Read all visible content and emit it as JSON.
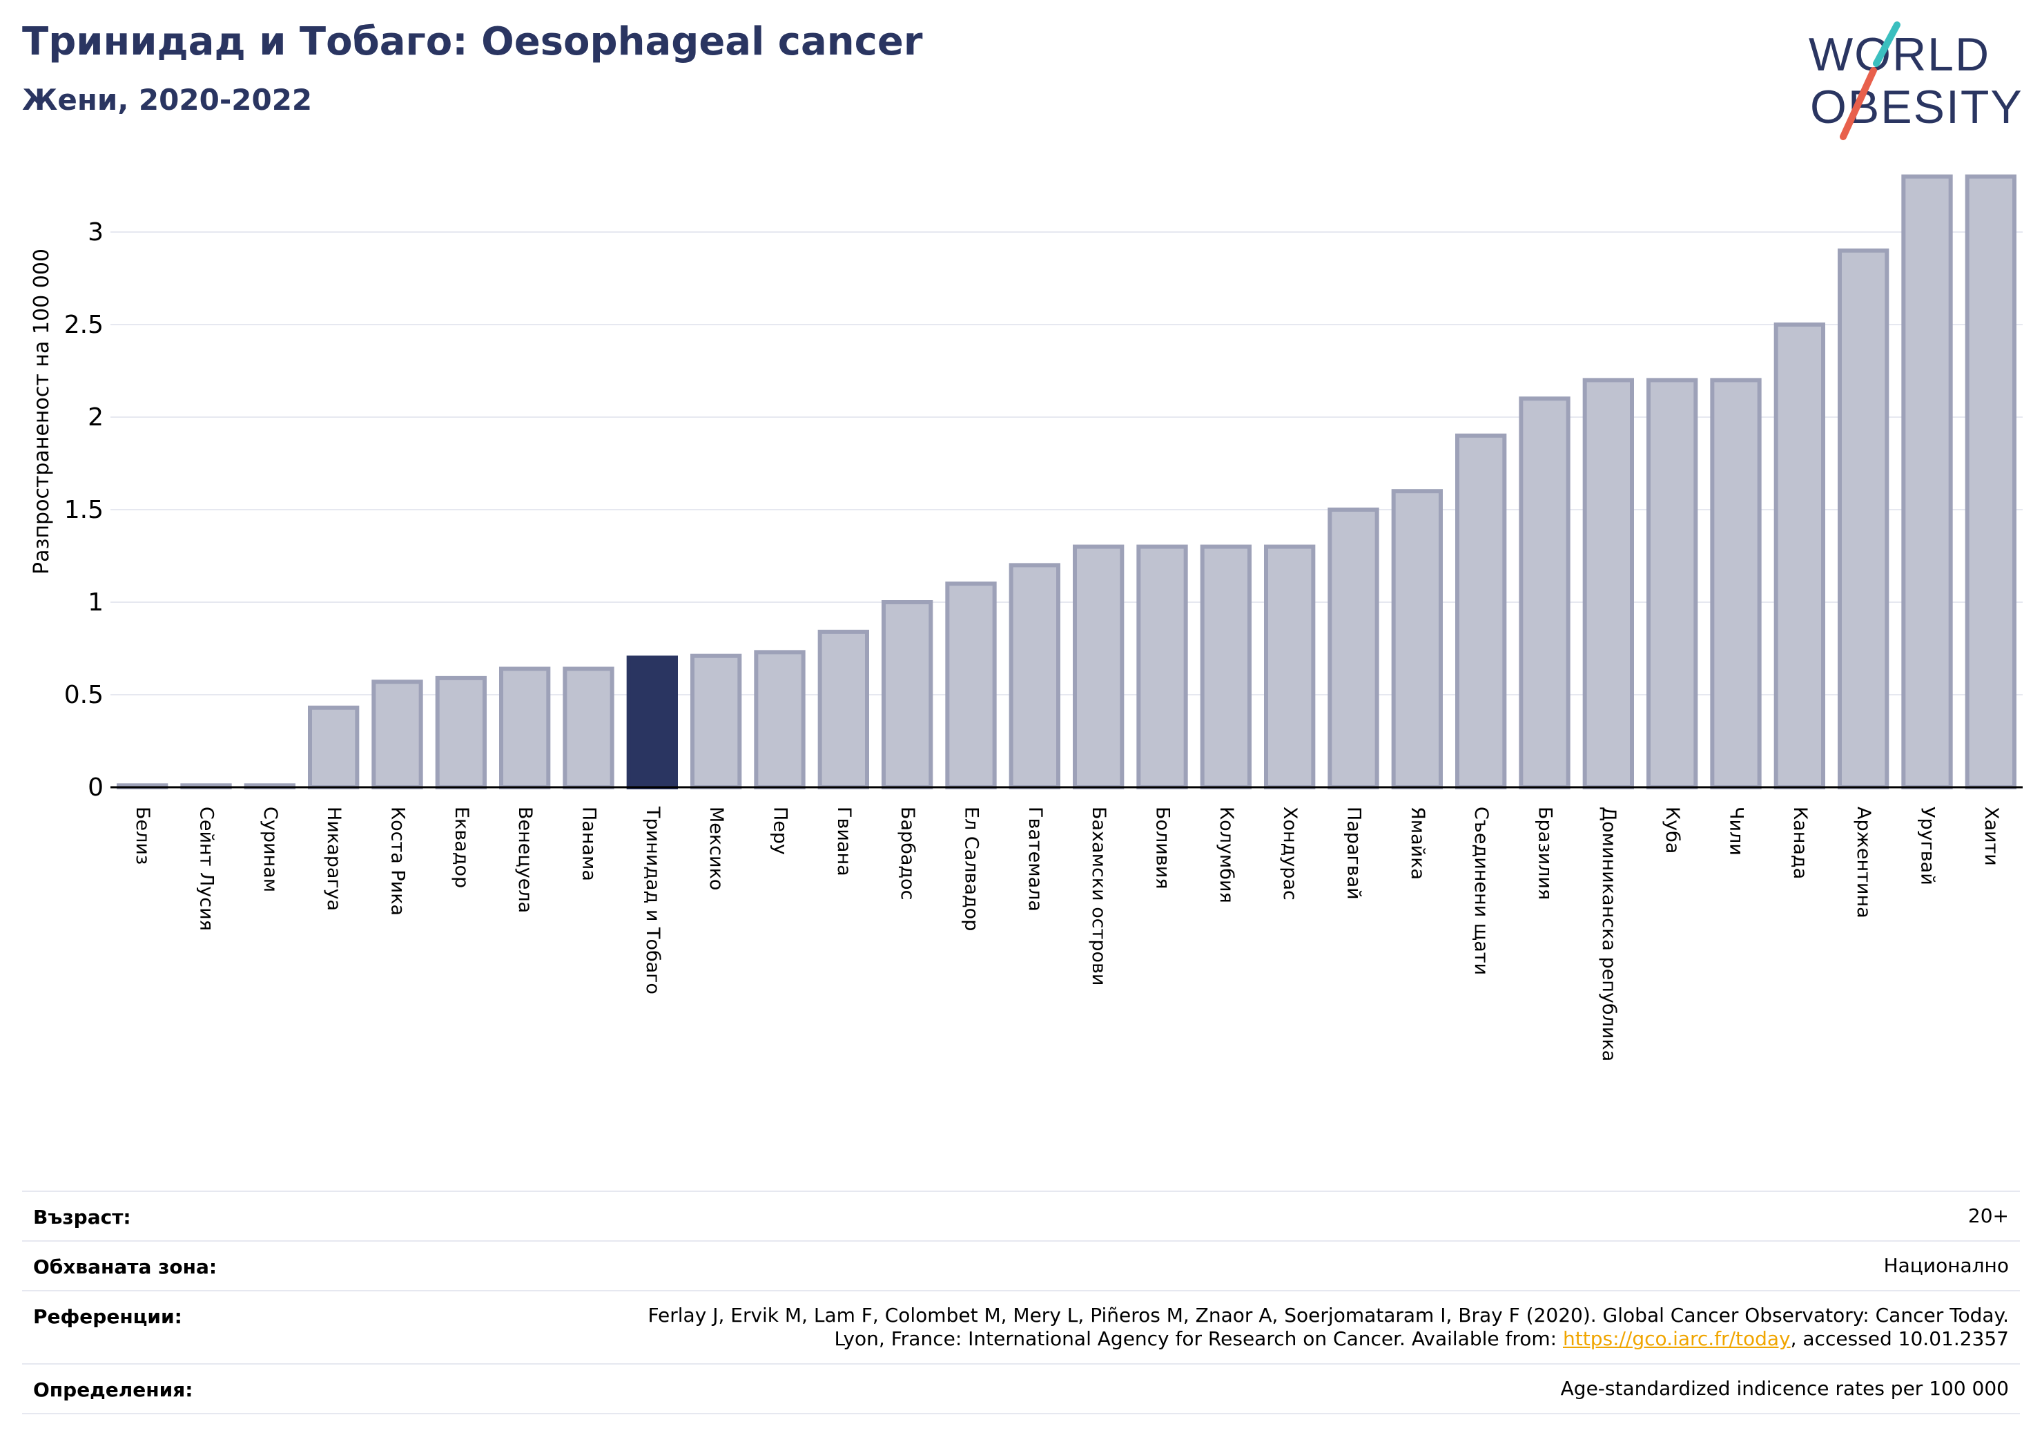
{
  "header": {
    "title": "Тринидад и Тобаго: Oesophageal cancer",
    "subtitle": "Жени, 2020-2022"
  },
  "logo": {
    "line1": "WORLD",
    "line2": "OBESITY"
  },
  "colors": {
    "highlight": "#2a3561",
    "bar_fill": "#bfc2d0",
    "bar_edge": "#9da1b8",
    "grid": "#e6e8f0",
    "link": "#f0a500",
    "logo_slash_teal": "#3bbfbf",
    "logo_slash_red": "#e8604c"
  },
  "chart_data": {
    "type": "bar",
    "ylabel": "Разпространеност  на 100 000",
    "ylim": [
      0,
      3.3
    ],
    "yticks": [
      0,
      0.5,
      1,
      1.5,
      2,
      2.5,
      3
    ],
    "ytick_labels": [
      "0",
      "0.5",
      "1",
      "1.5",
      "2",
      "2.5",
      "3"
    ],
    "grid": true,
    "highlight": "Тринидад и Тобаго",
    "categories": [
      "Белиз",
      "Сейнт Лусия",
      "Суринам",
      "Никарагуа",
      "Коста Рика",
      "Еквадор",
      "Венецуела",
      "Панама",
      "Тринидад и Тобаго",
      "Мексико",
      "Перу",
      "Гвиана",
      "Барбадос",
      "Ел Салвадор",
      "Гватемала",
      "Бахамски острови",
      "Боливия",
      "Колумбия",
      "Хондурас",
      "Парагвай",
      "Ямайка",
      "Съединени щати",
      "Бразилия",
      "Доминиканска република",
      "Куба",
      "Чили",
      "Канада",
      "Аржентина",
      "Уругвай",
      "Хаити"
    ],
    "values": [
      0.01,
      0.01,
      0.01,
      0.43,
      0.57,
      0.59,
      0.64,
      0.64,
      0.7,
      0.71,
      0.73,
      0.84,
      1.0,
      1.1,
      1.2,
      1.3,
      1.3,
      1.3,
      1.3,
      1.5,
      1.6,
      1.9,
      2.1,
      2.2,
      2.2,
      2.2,
      2.5,
      2.9,
      3.3,
      3.3
    ]
  },
  "info": {
    "age_label": "Възраст:",
    "age_value": "20+",
    "coverage_label": "Обхваната зона:",
    "coverage_value": "Национално",
    "references_label": "Референции:",
    "references_line1": "Ferlay J, Ervik M, Lam F, Colombet M, Mery L, Piñeros M, Znaor A, Soerjomataram I, Bray F (2020). Global Cancer Observatory: Cancer Today.",
    "references_line2_prefix": "Lyon, France: International Agency for Research on Cancer. Available from: ",
    "references_link": "https://gco.iarc.fr/today",
    "references_line2_suffix": ", accessed 10.01.2357",
    "definitions_label": "Определения:",
    "definitions_value": "Age-standardized indicence rates per 100 000"
  }
}
